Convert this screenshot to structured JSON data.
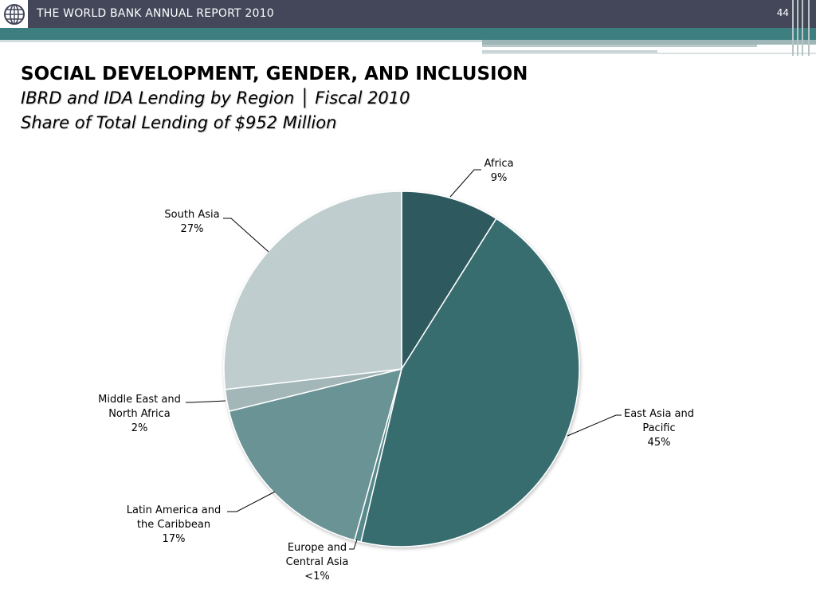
{
  "header": {
    "title": "THE WORLD BANK ANNUAL REPORT 2010",
    "page_number": "44",
    "logo_icon": "globe-icon"
  },
  "slide": {
    "title": "SOCIAL DEVELOPMENT, GENDER, AND INCLUSION",
    "subtitle1": "IBRD and IDA Lending by Region │ Fiscal 2010",
    "subtitle2": "Share of Total Lending of $952 Million"
  },
  "colors": {
    "header_bar": "#434759",
    "teal_band": "#3d7f80"
  },
  "chart_data": {
    "type": "pie",
    "title": "",
    "slices": [
      {
        "name": "Africa",
        "label_lines": [
          "Africa",
          "9%"
        ],
        "value": 9,
        "color": "#2e5a5e"
      },
      {
        "name": "East Asia and Pacific",
        "label_lines": [
          "East Asia and",
          "Pacific",
          "45%"
        ],
        "value": 45,
        "color": "#396d6f"
      },
      {
        "name": "Europe and Central Asia",
        "label_lines": [
          "Europe and",
          "Central Asia",
          "<1%"
        ],
        "value": 0.6,
        "color": "#59898b"
      },
      {
        "name": "Latin America and the Caribbean",
        "label_lines": [
          "Latin America and",
          "the Caribbean",
          "17%"
        ],
        "value": 17,
        "color": "#6b9396"
      },
      {
        "name": "Middle East and North Africa",
        "label_lines": [
          "Middle East and",
          "North Africa",
          "2%"
        ],
        "value": 2,
        "color": "#a3b6b8"
      },
      {
        "name": "South Asia",
        "label_lines": [
          "South Asia",
          "27%"
        ],
        "value": 27,
        "color": "#bfcdcf"
      }
    ],
    "start_angle": "12 o'clock",
    "direction": "clockwise",
    "legend": "none"
  }
}
